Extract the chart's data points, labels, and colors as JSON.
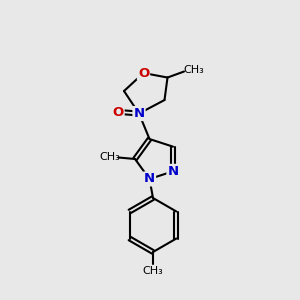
{
  "bg_color": "#e8e8e8",
  "bond_color": "#000000",
  "N_color": "#0000cc",
  "O_color": "#cc0000",
  "bond_width": 1.5,
  "fig_width": 3.0,
  "fig_height": 3.0,
  "dpi": 100,
  "xlim": [
    0,
    10
  ],
  "ylim": [
    0,
    10
  ]
}
